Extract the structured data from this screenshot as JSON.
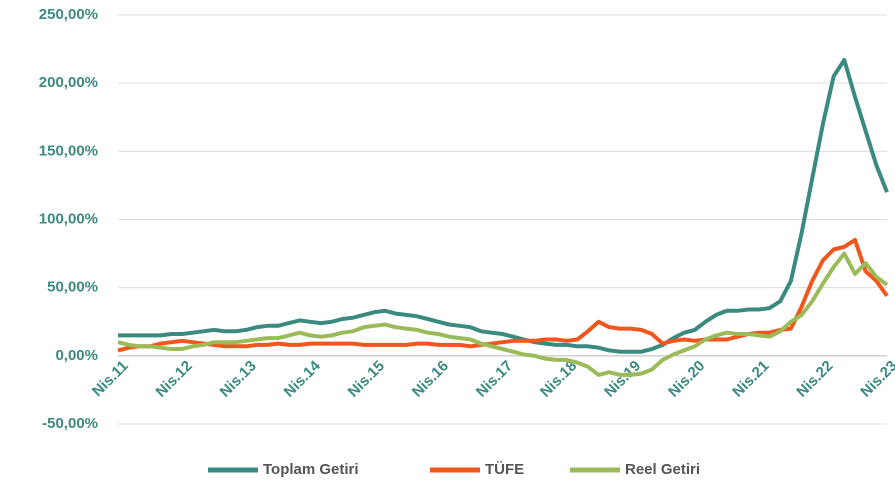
{
  "chart_data": {
    "type": "line",
    "categories": [
      "Nis.11",
      null,
      null,
      null,
      null,
      null,
      "Nis.12",
      null,
      null,
      null,
      null,
      null,
      "Nis.13",
      null,
      null,
      null,
      null,
      null,
      "Nis.14",
      null,
      null,
      null,
      null,
      null,
      "Nis.15",
      null,
      null,
      null,
      null,
      null,
      "Nis.16",
      null,
      null,
      null,
      null,
      null,
      "Nis.17",
      null,
      null,
      null,
      null,
      null,
      "Nis.18",
      null,
      null,
      null,
      null,
      null,
      "Nis.19",
      null,
      null,
      null,
      null,
      null,
      "Nis.20",
      null,
      null,
      null,
      null,
      null,
      "Nis.21",
      null,
      null,
      null,
      null,
      null,
      "Nis.22",
      null,
      null,
      null,
      null,
      null,
      "Nis.23"
    ],
    "series": [
      {
        "name": "Toplam Getiri",
        "color": "#3a8a80",
        "values": [
          15,
          15,
          15,
          15,
          15,
          16,
          16,
          17,
          18,
          19,
          18,
          18,
          19,
          21,
          22,
          22,
          24,
          26,
          25,
          24,
          25,
          27,
          28,
          30,
          32,
          33,
          31,
          30,
          29,
          27,
          25,
          23,
          22,
          21,
          18,
          17,
          16,
          14,
          12,
          10,
          9,
          8,
          8,
          7,
          7,
          6,
          4,
          3,
          3,
          3,
          5,
          8,
          13,
          17,
          19,
          25,
          30,
          33,
          33,
          34,
          34,
          35,
          40,
          55,
          90,
          130,
          170,
          205,
          217,
          190,
          165,
          140,
          120
        ]
      },
      {
        "name": "TÜFE",
        "color": "#f0561d",
        "values": [
          4,
          6,
          7,
          7,
          9,
          10,
          11,
          10,
          9,
          8,
          7,
          7,
          7,
          8,
          8,
          9,
          8,
          8,
          9,
          9,
          9,
          9,
          9,
          8,
          8,
          8,
          8,
          8,
          9,
          9,
          8,
          8,
          8,
          7,
          8,
          9,
          10,
          11,
          11,
          11,
          12,
          12,
          11,
          12,
          18,
          25,
          21,
          20,
          20,
          19,
          16,
          9,
          11,
          12,
          11,
          12,
          12,
          12,
          14,
          16,
          17,
          17,
          19,
          20,
          36,
          55,
          70,
          78,
          80,
          85,
          62,
          55,
          44
        ]
      },
      {
        "name": "Reel Getiri",
        "color": "#9bbb59",
        "values": [
          10,
          8,
          7,
          7,
          6,
          5,
          5,
          7,
          8,
          10,
          10,
          10,
          11,
          12,
          13,
          13,
          15,
          17,
          15,
          14,
          15,
          17,
          18,
          21,
          22,
          23,
          21,
          20,
          19,
          17,
          16,
          14,
          13,
          12,
          9,
          7,
          5,
          3,
          1,
          0,
          -2,
          -3,
          -3,
          -5,
          -8,
          -14,
          -12,
          -14,
          -14,
          -13,
          -10,
          -3,
          1,
          4,
          7,
          12,
          15,
          17,
          16,
          16,
          15,
          14,
          18,
          25,
          30,
          40,
          53,
          65,
          75,
          60,
          68,
          58,
          52
        ]
      }
    ],
    "ylim": [
      -50,
      250
    ],
    "yticks": [
      {
        "value": -50,
        "label": "-50,00%"
      },
      {
        "value": 0,
        "label": "0,00%"
      },
      {
        "value": 50,
        "label": "50,00%"
      },
      {
        "value": 100,
        "label": "100,00%"
      },
      {
        "value": 150,
        "label": "150,00%"
      },
      {
        "value": 200,
        "label": "200,00%"
      },
      {
        "value": 250,
        "label": "250,00%"
      }
    ],
    "grid": true,
    "legend": "bottom"
  }
}
